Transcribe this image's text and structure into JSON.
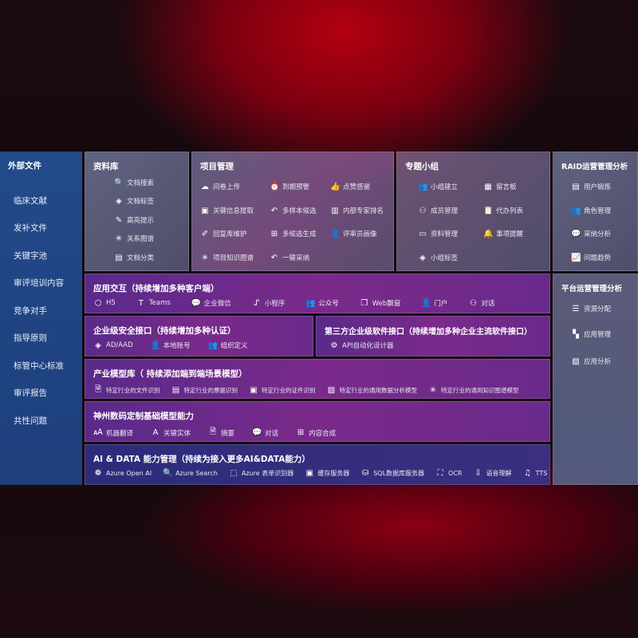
{
  "external": {
    "title": "外部文件",
    "items": [
      "临床文献",
      "发补文件",
      "关键字池",
      "审评培训内容",
      "竞争对手",
      "指导原则",
      "标管中心标准",
      "审评报告",
      "共性问题"
    ]
  },
  "library": {
    "title": "资料库",
    "items": [
      {
        "icon": "doc-search-icon",
        "label": "文档搜索"
      },
      {
        "icon": "tag-icon",
        "label": "文档标签"
      },
      {
        "icon": "pen-icon",
        "label": "高亮提示"
      },
      {
        "icon": "graph-icon",
        "label": "关系图谱"
      },
      {
        "icon": "docs-icon",
        "label": "文档分类"
      }
    ]
  },
  "project": {
    "title": "项目管理",
    "items": [
      {
        "icon": "cloud-upload-icon",
        "label": "问卷上传"
      },
      {
        "icon": "alarm-icon",
        "label": "到期预警"
      },
      {
        "icon": "thumbs-up-icon",
        "label": "点赞感谢"
      },
      {
        "icon": "window-icon",
        "label": "关键信息提取"
      },
      {
        "icon": "reply-icon",
        "label": "多样本候选"
      },
      {
        "icon": "ranking-icon",
        "label": "内部专家排名"
      },
      {
        "icon": "edit-icon",
        "label": "回复库维护"
      },
      {
        "icon": "puzzle-icon",
        "label": "多候选生成"
      },
      {
        "icon": "user-icon",
        "label": "评审员画像"
      },
      {
        "icon": "graph-icon",
        "label": "项目知识图谱"
      },
      {
        "icon": "reply-icon",
        "label": "一键采纳"
      }
    ]
  },
  "group": {
    "title": "专题小组",
    "items": [
      {
        "icon": "users-icon",
        "label": "小组建立"
      },
      {
        "icon": "bbs-icon",
        "label": "留言板"
      },
      {
        "icon": "user-add-icon",
        "label": "成员管理"
      },
      {
        "icon": "clipboard-icon",
        "label": "代办列表"
      },
      {
        "icon": "folder-icon",
        "label": "资料管理"
      },
      {
        "icon": "bell-icon",
        "label": "事项提醒"
      },
      {
        "icon": "tag-icon",
        "label": "小组标签"
      }
    ]
  },
  "raid": {
    "title": "RAID运营管理分析",
    "items": [
      {
        "icon": "id-card-icon",
        "label": "用户锻炼"
      },
      {
        "icon": "users-icon",
        "label": "角色管理"
      },
      {
        "icon": "qa-icon",
        "label": "采纳分析"
      },
      {
        "icon": "trend-icon",
        "label": "问题趋势"
      }
    ]
  },
  "platform": {
    "title": "平台运营管理分析",
    "items": [
      {
        "icon": "list-icon",
        "label": "资源分配"
      },
      {
        "icon": "apps-icon",
        "label": "应用管理"
      },
      {
        "icon": "chart-icon",
        "label": "应用分析"
      }
    ]
  },
  "app": {
    "title": "应用交互（持续增加多种客户端）",
    "items": [
      {
        "icon": "html5-icon",
        "label": "H5"
      },
      {
        "icon": "teams-icon",
        "label": "Teams"
      },
      {
        "icon": "wechat-icon",
        "label": "企业微信"
      },
      {
        "icon": "miniprogram-icon",
        "label": "小程序"
      },
      {
        "icon": "users-icon",
        "label": "公众号"
      },
      {
        "icon": "window-icon",
        "label": "Web飘窗"
      },
      {
        "icon": "portal-icon",
        "label": "门户"
      },
      {
        "icon": "chat-icon",
        "label": "对话"
      }
    ]
  },
  "security": {
    "title": "企业级安全接口（持续增加多种认证）",
    "items": [
      {
        "icon": "ad-icon",
        "label": "AD/AAD"
      },
      {
        "icon": "user-icon",
        "label": "本地账号"
      },
      {
        "icon": "org-icon",
        "label": "组织定义"
      }
    ]
  },
  "thirdparty": {
    "title": "第三方企业级软件接口（持续增加多种企业主流软件接口）",
    "items": [
      {
        "icon": "gear-icon",
        "label": "API自动化设计器"
      }
    ]
  },
  "industry": {
    "title": "产业模型库（ 持续添加端到端场景模型）",
    "items": [
      {
        "icon": "file-icon",
        "label": "特定行业的文件识别"
      },
      {
        "icon": "receipt-icon",
        "label": "特定行业的票据识别"
      },
      {
        "icon": "id-card-icon",
        "label": "特定行业的证件识别"
      },
      {
        "icon": "chart-icon",
        "label": "特定行业的通用数据分析模型"
      },
      {
        "icon": "graph-icon",
        "label": "特定行业的通用知识图谱模型"
      }
    ]
  },
  "shenzhou": {
    "title": "神州数码定制基础模型能力",
    "items": [
      {
        "icon": "translate-icon",
        "label": "机器翻译"
      },
      {
        "icon": "entity-icon",
        "label": "关键实体"
      },
      {
        "icon": "summary-icon",
        "label": "摘要"
      },
      {
        "icon": "chat-icon",
        "label": "对话"
      },
      {
        "icon": "puzzle-icon",
        "label": "内容合成"
      }
    ]
  },
  "ai": {
    "title": "AI & DATA 能力管理（持续为接入更多AI&DATA能力）",
    "items": [
      {
        "icon": "openai-icon",
        "label": "Azure Open AI"
      },
      {
        "icon": "search-icon",
        "label": "Azure Search"
      },
      {
        "icon": "form-icon",
        "label": "Azure 表单识别器"
      },
      {
        "icon": "cache-icon",
        "label": "缓存服务器"
      },
      {
        "icon": "sql-icon",
        "label": "SQL数据库服务器"
      },
      {
        "icon": "ocr-icon",
        "label": "OCR"
      },
      {
        "icon": "speech-icon",
        "label": "语音理解"
      },
      {
        "icon": "tts-icon",
        "label": "TTS"
      }
    ]
  }
}
